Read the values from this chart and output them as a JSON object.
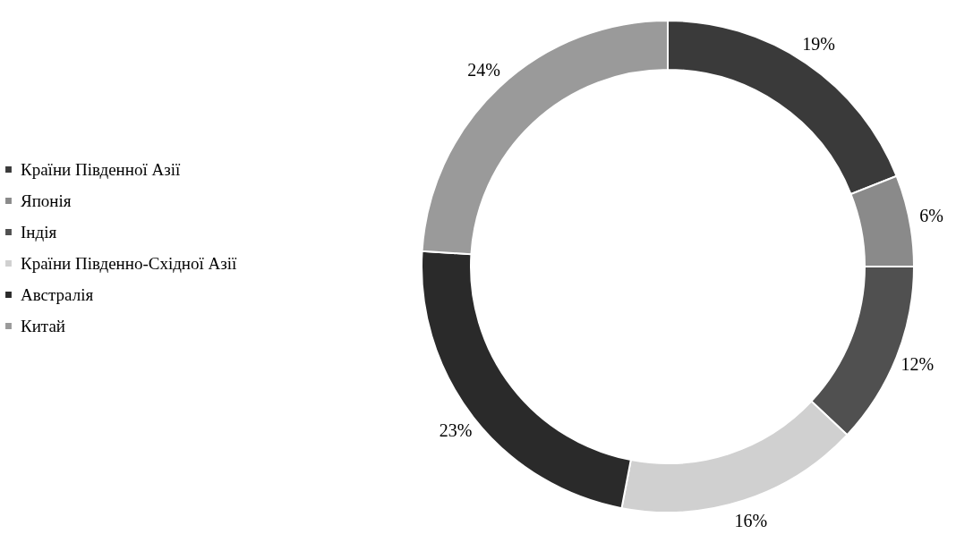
{
  "chart_data": {
    "type": "donut",
    "categories": [
      "Країни Південної Азії",
      "Японія",
      "Індія",
      "Країни Південно-Східної Азії",
      "Австралія",
      "Китай"
    ],
    "values": [
      19,
      6,
      12,
      16,
      23,
      24
    ],
    "value_labels": [
      "19%",
      "6%",
      "12%",
      "16%",
      "23%",
      "24%"
    ],
    "colors": [
      "#3a3a3a",
      "#8a8a8a",
      "#505050",
      "#d0d0d0",
      "#2a2a2a",
      "#9a9a9a"
    ],
    "legend": "left"
  }
}
